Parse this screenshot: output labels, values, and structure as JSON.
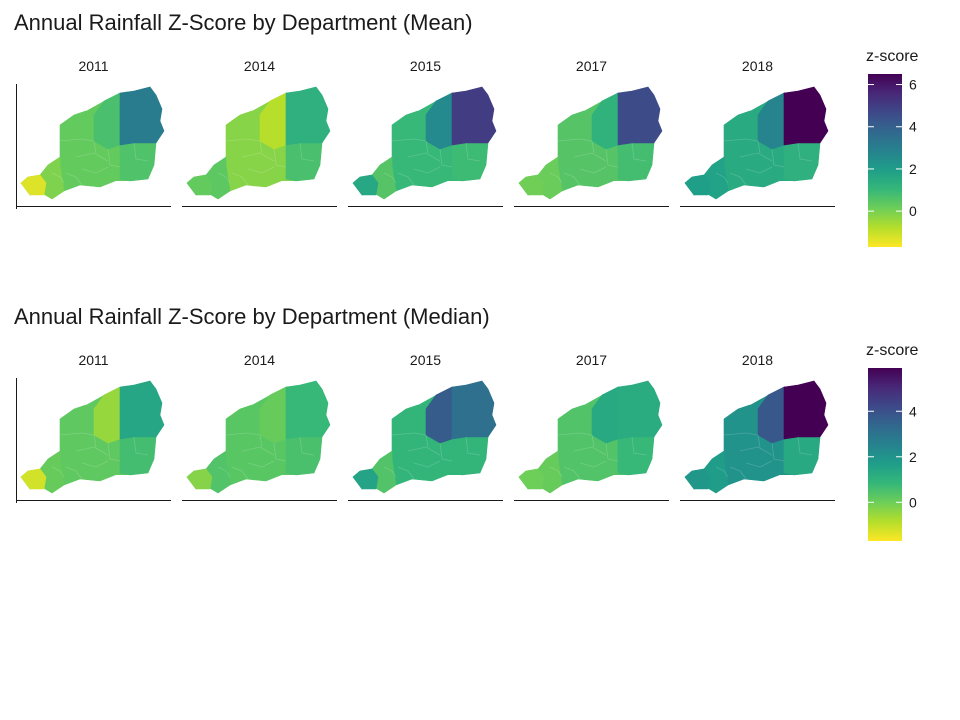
{
  "figures": [
    {
      "title": "Annual Rainfall Z-Score by Department (Mean)",
      "legend_title": "z-score",
      "legend": {
        "range": [
          -1.7,
          6.5
        ],
        "ticks": [
          "6",
          "4",
          "2",
          "0"
        ],
        "tick_values": [
          6,
          4,
          2,
          0
        ]
      },
      "panels": [
        {
          "year": "2011",
          "east": 3.1,
          "north": 0.7,
          "middle": 0.3,
          "west": -0.1,
          "south": 0.6,
          "southwest": -1.3
        },
        {
          "year": "2014",
          "east": 1.3,
          "north": -0.8,
          "middle": -0.2,
          "west": 0.4,
          "south": 0.7,
          "southwest": 0.3
        },
        {
          "year": "2015",
          "east": 5.0,
          "north": 2.6,
          "middle": 1.0,
          "west": 0.5,
          "south": 0.9,
          "southwest": 1.6
        },
        {
          "year": "2017",
          "east": 4.6,
          "north": 1.2,
          "middle": 0.5,
          "west": 0.2,
          "south": 0.8,
          "southwest": 0.1
        },
        {
          "year": "2018",
          "east": 6.5,
          "north": 2.8,
          "middle": 1.5,
          "west": 1.8,
          "south": 1.3,
          "southwest": 1.9
        }
      ]
    },
    {
      "title": "Annual Rainfall Z-Score by Department (Median)",
      "legend_title": "z-score",
      "legend": {
        "range": [
          -1.7,
          5.9
        ],
        "ticks": [
          "4",
          "2",
          "0"
        ],
        "tick_values": [
          4,
          2,
          0
        ]
      },
      "panels": [
        {
          "year": "2011",
          "east": 1.4,
          "north": -0.5,
          "middle": 0.2,
          "west": 0.1,
          "south": 0.6,
          "southwest": -1.2
        },
        {
          "year": "2014",
          "east": 0.8,
          "north": 0.1,
          "middle": 0.3,
          "west": 0.4,
          "south": 0.5,
          "southwest": -0.3
        },
        {
          "year": "2015",
          "east": 3.1,
          "north": 3.7,
          "middle": 0.9,
          "west": 0.4,
          "south": 0.9,
          "southwest": 1.5
        },
        {
          "year": "2017",
          "east": 1.2,
          "north": 1.3,
          "middle": 0.4,
          "west": 0.1,
          "south": 0.8,
          "southwest": 0.0
        },
        {
          "year": "2018",
          "east": 5.9,
          "north": 3.8,
          "middle": 2.0,
          "west": 1.7,
          "south": 1.3,
          "southwest": 1.9
        }
      ]
    }
  ]
}
